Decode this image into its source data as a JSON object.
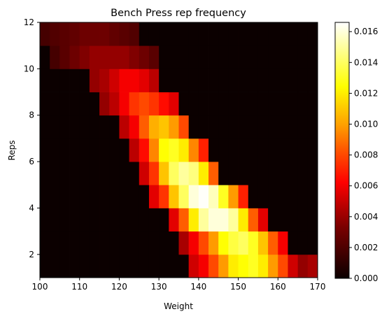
{
  "chart_data": {
    "type": "heatmap",
    "title": "Bench Press rep frequency",
    "xlabel": "Weight",
    "ylabel": "Reps",
    "xlim": [
      100,
      170
    ],
    "ylim": [
      1,
      12
    ],
    "grid": false,
    "colormap": "hot",
    "x_bin_edges": [
      100,
      102.5,
      105,
      107.5,
      110,
      112.5,
      115,
      117.5,
      120,
      122.5,
      125,
      127.5,
      130,
      132.5,
      135,
      137.5,
      140,
      142.5,
      145,
      147.5,
      150,
      152.5,
      155,
      157.5,
      160,
      162.5,
      165,
      167.5,
      170
    ],
    "y_bin_edges": [
      1,
      2,
      3,
      4,
      5,
      6,
      7,
      8,
      9,
      10,
      11,
      12
    ],
    "z": [
      [
        0,
        0,
        0,
        0,
        0,
        0,
        0,
        0,
        0,
        0,
        0,
        0,
        0,
        0,
        0,
        0.005,
        0.006,
        0.008,
        0.01,
        0.012,
        0.0125,
        0.013,
        0.012,
        0.01,
        0.008,
        0.005,
        0.0035,
        0.004
      ],
      [
        0,
        0,
        0,
        0,
        0,
        0,
        0,
        0,
        0,
        0,
        0,
        0,
        0,
        0,
        0.004,
        0.006,
        0.008,
        0.01,
        0.0125,
        0.0135,
        0.014,
        0.013,
        0.011,
        0.0085,
        0.006,
        0,
        0,
        0
      ],
      [
        0,
        0,
        0,
        0,
        0,
        0,
        0,
        0,
        0,
        0,
        0,
        0,
        0,
        0.0055,
        0.0085,
        0.012,
        0.015,
        0.016,
        0.016,
        0.015,
        0.012,
        0.0085,
        0.0055,
        0,
        0,
        0,
        0,
        0
      ],
      [
        0,
        0,
        0,
        0,
        0,
        0,
        0,
        0,
        0,
        0,
        0,
        0.0055,
        0.0075,
        0.011,
        0.014,
        0.016,
        0.0165,
        0.0155,
        0.013,
        0.01,
        0.007,
        0,
        0,
        0,
        0,
        0,
        0,
        0
      ],
      [
        0,
        0,
        0,
        0,
        0,
        0,
        0,
        0,
        0,
        0,
        0.005,
        0.0075,
        0.011,
        0.014,
        0.015,
        0.0145,
        0.012,
        0.0085,
        0,
        0,
        0,
        0,
        0,
        0,
        0,
        0,
        0,
        0
      ],
      [
        0,
        0,
        0,
        0,
        0,
        0,
        0,
        0,
        0,
        0.0045,
        0.0065,
        0.0095,
        0.0125,
        0.013,
        0.012,
        0.0095,
        0.007,
        0,
        0,
        0,
        0,
        0,
        0,
        0,
        0,
        0,
        0,
        0
      ],
      [
        0,
        0,
        0,
        0,
        0,
        0,
        0,
        0,
        0.0045,
        0.006,
        0.0085,
        0.0105,
        0.011,
        0.01,
        0.008,
        0,
        0,
        0,
        0,
        0,
        0,
        0,
        0,
        0,
        0,
        0,
        0,
        0
      ],
      [
        0,
        0,
        0,
        0,
        0,
        0,
        0.0035,
        0.0045,
        0.006,
        0.0075,
        0.008,
        0.0075,
        0.0065,
        0.0055,
        0,
        0,
        0,
        0,
        0,
        0,
        0,
        0,
        0,
        0,
        0,
        0,
        0,
        0
      ],
      [
        0,
        0,
        0,
        0,
        0,
        0.0035,
        0.004,
        0.005,
        0.006,
        0.006,
        0.0055,
        0.0045,
        0,
        0,
        0,
        0,
        0,
        0,
        0,
        0,
        0,
        0,
        0,
        0,
        0,
        0,
        0,
        0
      ],
      [
        0,
        0.0015,
        0.002,
        0.0025,
        0.003,
        0.0035,
        0.0035,
        0.0035,
        0.0035,
        0.003,
        0.0025,
        0.002,
        0,
        0,
        0,
        0,
        0,
        0,
        0,
        0,
        0,
        0,
        0,
        0,
        0,
        0,
        0,
        0
      ],
      [
        0.0015,
        0.0018,
        0.002,
        0.0022,
        0.0025,
        0.0025,
        0.0025,
        0.0022,
        0.002,
        0.0018,
        0,
        0,
        0,
        0,
        0,
        0,
        0,
        0,
        0,
        0,
        0,
        0,
        0,
        0,
        0,
        0,
        0,
        0
      ]
    ],
    "x_ticks": [
      100,
      110,
      120,
      130,
      140,
      150,
      160,
      170
    ],
    "y_ticks": [
      2,
      4,
      6,
      8,
      10,
      12
    ],
    "colorbar": {
      "vmin": 0,
      "vmax": 0.0166,
      "ticks": [
        0.0,
        0.002,
        0.004,
        0.006,
        0.008,
        0.01,
        0.012,
        0.014,
        0.016
      ],
      "tick_labels": [
        "0.000",
        "0.002",
        "0.004",
        "0.006",
        "0.008",
        "0.010",
        "0.012",
        "0.014",
        "0.016"
      ]
    }
  }
}
